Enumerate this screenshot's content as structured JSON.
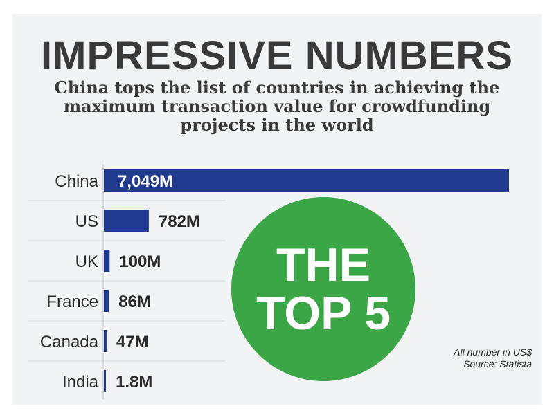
{
  "title": "IMPRESSIVE NUMBERS",
  "subtitle": "China tops the list of countries in achieving the maximum transaction value for crowdfunding projects in the world",
  "badge": {
    "line1": "THE",
    "line2": "TOP 5",
    "color": "#3aa646"
  },
  "note": {
    "line1": "All number in US$",
    "line2": "Source: Statista"
  },
  "colors": {
    "bar": "#1f3a8f",
    "text": "#2a2a2a",
    "title": "#3a3a3a"
  },
  "chart_data": {
    "type": "bar",
    "orientation": "horizontal",
    "categories": [
      "China",
      "US",
      "UK",
      "France",
      "Canada",
      "India"
    ],
    "values": [
      7049,
      782,
      100,
      86,
      47,
      1.8
    ],
    "value_labels": [
      "7,049M",
      "782M",
      "100M",
      "86M",
      "47M",
      "1.8M"
    ],
    "unit": "M"
  }
}
